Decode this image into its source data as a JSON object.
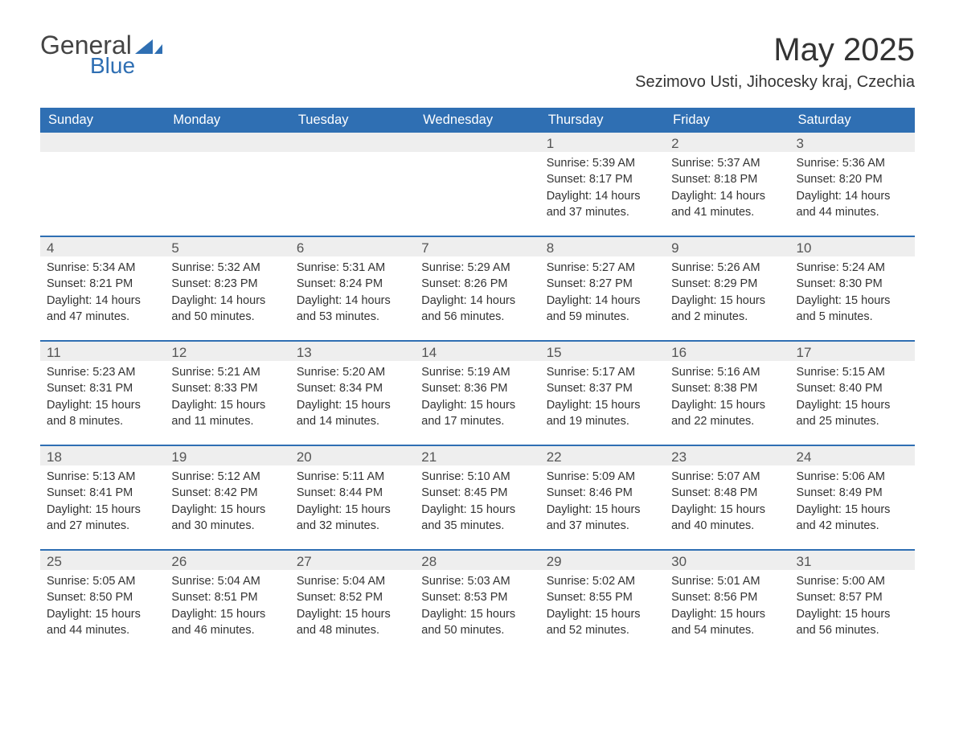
{
  "logo": {
    "text1": "General",
    "text2": "Blue",
    "flag_color": "#2f6fb3"
  },
  "title": "May 2025",
  "location": "Sezimovo Usti, Jihocesky kraj, Czechia",
  "colors": {
    "header_bg": "#2f6fb3",
    "header_text": "#ffffff",
    "date_bar_bg": "#eeeeee",
    "body_text": "#333333",
    "week_border": "#2f6fb3"
  },
  "day_names": [
    "Sunday",
    "Monday",
    "Tuesday",
    "Wednesday",
    "Thursday",
    "Friday",
    "Saturday"
  ],
  "weeks": [
    [
      {
        "date": "",
        "sunrise": "",
        "sunset": "",
        "daylight": ""
      },
      {
        "date": "",
        "sunrise": "",
        "sunset": "",
        "daylight": ""
      },
      {
        "date": "",
        "sunrise": "",
        "sunset": "",
        "daylight": ""
      },
      {
        "date": "",
        "sunrise": "",
        "sunset": "",
        "daylight": ""
      },
      {
        "date": "1",
        "sunrise": "Sunrise: 5:39 AM",
        "sunset": "Sunset: 8:17 PM",
        "daylight": "Daylight: 14 hours and 37 minutes."
      },
      {
        "date": "2",
        "sunrise": "Sunrise: 5:37 AM",
        "sunset": "Sunset: 8:18 PM",
        "daylight": "Daylight: 14 hours and 41 minutes."
      },
      {
        "date": "3",
        "sunrise": "Sunrise: 5:36 AM",
        "sunset": "Sunset: 8:20 PM",
        "daylight": "Daylight: 14 hours and 44 minutes."
      }
    ],
    [
      {
        "date": "4",
        "sunrise": "Sunrise: 5:34 AM",
        "sunset": "Sunset: 8:21 PM",
        "daylight": "Daylight: 14 hours and 47 minutes."
      },
      {
        "date": "5",
        "sunrise": "Sunrise: 5:32 AM",
        "sunset": "Sunset: 8:23 PM",
        "daylight": "Daylight: 14 hours and 50 minutes."
      },
      {
        "date": "6",
        "sunrise": "Sunrise: 5:31 AM",
        "sunset": "Sunset: 8:24 PM",
        "daylight": "Daylight: 14 hours and 53 minutes."
      },
      {
        "date": "7",
        "sunrise": "Sunrise: 5:29 AM",
        "sunset": "Sunset: 8:26 PM",
        "daylight": "Daylight: 14 hours and 56 minutes."
      },
      {
        "date": "8",
        "sunrise": "Sunrise: 5:27 AM",
        "sunset": "Sunset: 8:27 PM",
        "daylight": "Daylight: 14 hours and 59 minutes."
      },
      {
        "date": "9",
        "sunrise": "Sunrise: 5:26 AM",
        "sunset": "Sunset: 8:29 PM",
        "daylight": "Daylight: 15 hours and 2 minutes."
      },
      {
        "date": "10",
        "sunrise": "Sunrise: 5:24 AM",
        "sunset": "Sunset: 8:30 PM",
        "daylight": "Daylight: 15 hours and 5 minutes."
      }
    ],
    [
      {
        "date": "11",
        "sunrise": "Sunrise: 5:23 AM",
        "sunset": "Sunset: 8:31 PM",
        "daylight": "Daylight: 15 hours and 8 minutes."
      },
      {
        "date": "12",
        "sunrise": "Sunrise: 5:21 AM",
        "sunset": "Sunset: 8:33 PM",
        "daylight": "Daylight: 15 hours and 11 minutes."
      },
      {
        "date": "13",
        "sunrise": "Sunrise: 5:20 AM",
        "sunset": "Sunset: 8:34 PM",
        "daylight": "Daylight: 15 hours and 14 minutes."
      },
      {
        "date": "14",
        "sunrise": "Sunrise: 5:19 AM",
        "sunset": "Sunset: 8:36 PM",
        "daylight": "Daylight: 15 hours and 17 minutes."
      },
      {
        "date": "15",
        "sunrise": "Sunrise: 5:17 AM",
        "sunset": "Sunset: 8:37 PM",
        "daylight": "Daylight: 15 hours and 19 minutes."
      },
      {
        "date": "16",
        "sunrise": "Sunrise: 5:16 AM",
        "sunset": "Sunset: 8:38 PM",
        "daylight": "Daylight: 15 hours and 22 minutes."
      },
      {
        "date": "17",
        "sunrise": "Sunrise: 5:15 AM",
        "sunset": "Sunset: 8:40 PM",
        "daylight": "Daylight: 15 hours and 25 minutes."
      }
    ],
    [
      {
        "date": "18",
        "sunrise": "Sunrise: 5:13 AM",
        "sunset": "Sunset: 8:41 PM",
        "daylight": "Daylight: 15 hours and 27 minutes."
      },
      {
        "date": "19",
        "sunrise": "Sunrise: 5:12 AM",
        "sunset": "Sunset: 8:42 PM",
        "daylight": "Daylight: 15 hours and 30 minutes."
      },
      {
        "date": "20",
        "sunrise": "Sunrise: 5:11 AM",
        "sunset": "Sunset: 8:44 PM",
        "daylight": "Daylight: 15 hours and 32 minutes."
      },
      {
        "date": "21",
        "sunrise": "Sunrise: 5:10 AM",
        "sunset": "Sunset: 8:45 PM",
        "daylight": "Daylight: 15 hours and 35 minutes."
      },
      {
        "date": "22",
        "sunrise": "Sunrise: 5:09 AM",
        "sunset": "Sunset: 8:46 PM",
        "daylight": "Daylight: 15 hours and 37 minutes."
      },
      {
        "date": "23",
        "sunrise": "Sunrise: 5:07 AM",
        "sunset": "Sunset: 8:48 PM",
        "daylight": "Daylight: 15 hours and 40 minutes."
      },
      {
        "date": "24",
        "sunrise": "Sunrise: 5:06 AM",
        "sunset": "Sunset: 8:49 PM",
        "daylight": "Daylight: 15 hours and 42 minutes."
      }
    ],
    [
      {
        "date": "25",
        "sunrise": "Sunrise: 5:05 AM",
        "sunset": "Sunset: 8:50 PM",
        "daylight": "Daylight: 15 hours and 44 minutes."
      },
      {
        "date": "26",
        "sunrise": "Sunrise: 5:04 AM",
        "sunset": "Sunset: 8:51 PM",
        "daylight": "Daylight: 15 hours and 46 minutes."
      },
      {
        "date": "27",
        "sunrise": "Sunrise: 5:04 AM",
        "sunset": "Sunset: 8:52 PM",
        "daylight": "Daylight: 15 hours and 48 minutes."
      },
      {
        "date": "28",
        "sunrise": "Sunrise: 5:03 AM",
        "sunset": "Sunset: 8:53 PM",
        "daylight": "Daylight: 15 hours and 50 minutes."
      },
      {
        "date": "29",
        "sunrise": "Sunrise: 5:02 AM",
        "sunset": "Sunset: 8:55 PM",
        "daylight": "Daylight: 15 hours and 52 minutes."
      },
      {
        "date": "30",
        "sunrise": "Sunrise: 5:01 AM",
        "sunset": "Sunset: 8:56 PM",
        "daylight": "Daylight: 15 hours and 54 minutes."
      },
      {
        "date": "31",
        "sunrise": "Sunrise: 5:00 AM",
        "sunset": "Sunset: 8:57 PM",
        "daylight": "Daylight: 15 hours and 56 minutes."
      }
    ]
  ]
}
